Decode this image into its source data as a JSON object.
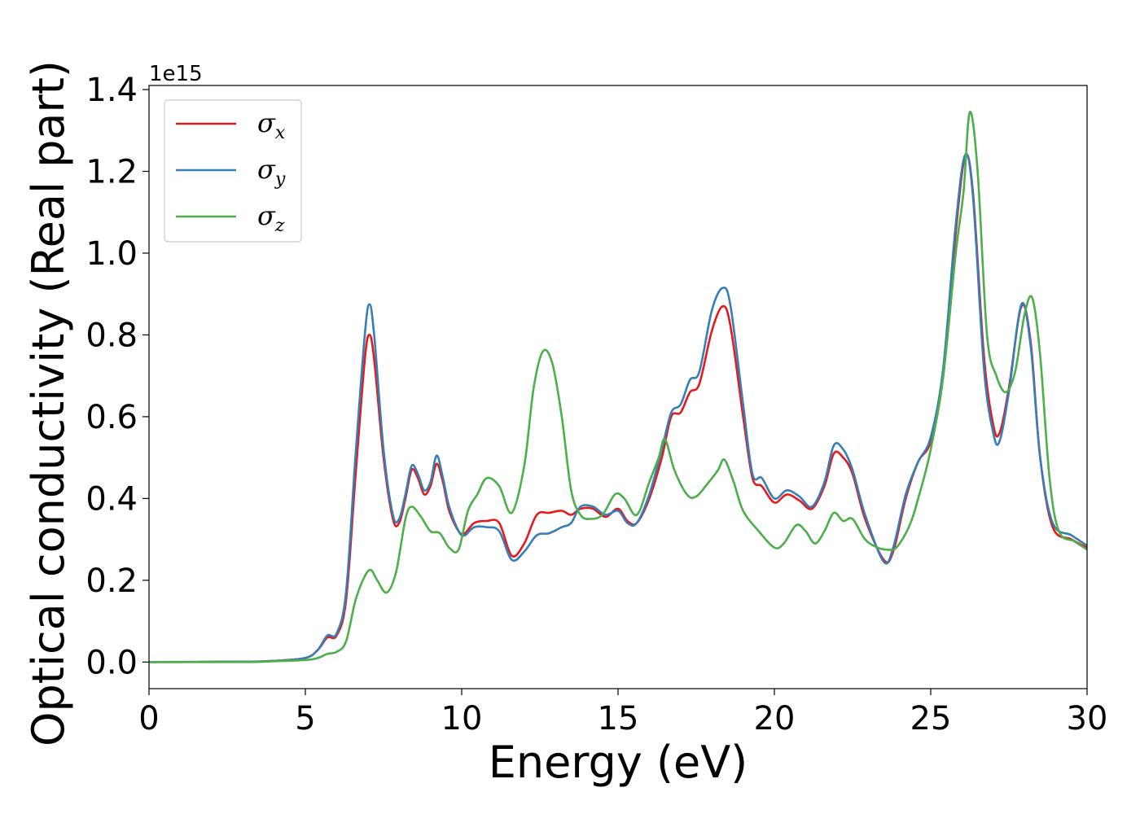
{
  "chart_data": {
    "type": "line",
    "title": "",
    "xlabel": "Energy (eV)",
    "ylabel": "Optical conductivity (Real part)",
    "y_offset_label": "1e15",
    "xlim": [
      0,
      30
    ],
    "ylim": [
      -0.065,
      1.41
    ],
    "x_ticks": [
      0,
      5,
      10,
      15,
      20,
      25,
      30
    ],
    "y_ticks": [
      0.0,
      0.2,
      0.4,
      0.6,
      0.8,
      1.0,
      1.2,
      1.4
    ],
    "x_tick_labels": [
      "0",
      "5",
      "10",
      "15",
      "20",
      "25",
      "30"
    ],
    "y_tick_labels": [
      "0.0",
      "0.2",
      "0.4",
      "0.6",
      "0.8",
      "1.0",
      "1.2",
      "1.4"
    ],
    "grid": false,
    "legend": "top-left",
    "series": [
      {
        "name": "σx",
        "symbol": "σ",
        "subscript": "x",
        "color": "#e41a1c",
        "points": [
          [
            0,
            0
          ],
          [
            3,
            0.001
          ],
          [
            4,
            0.003
          ],
          [
            5,
            0.01
          ],
          [
            5.4,
            0.03
          ],
          [
            5.7,
            0.06
          ],
          [
            6.0,
            0.065
          ],
          [
            6.3,
            0.15
          ],
          [
            6.6,
            0.45
          ],
          [
            6.9,
            0.74
          ],
          [
            7.05,
            0.8
          ],
          [
            7.2,
            0.74
          ],
          [
            7.5,
            0.5
          ],
          [
            7.8,
            0.35
          ],
          [
            8.0,
            0.34
          ],
          [
            8.2,
            0.4
          ],
          [
            8.4,
            0.47
          ],
          [
            8.6,
            0.45
          ],
          [
            8.8,
            0.41
          ],
          [
            9.0,
            0.43
          ],
          [
            9.2,
            0.485
          ],
          [
            9.4,
            0.44
          ],
          [
            9.6,
            0.37
          ],
          [
            9.9,
            0.32
          ],
          [
            10.1,
            0.315
          ],
          [
            10.4,
            0.34
          ],
          [
            10.8,
            0.345
          ],
          [
            11.2,
            0.34
          ],
          [
            11.6,
            0.26
          ],
          [
            12.0,
            0.29
          ],
          [
            12.4,
            0.36
          ],
          [
            12.8,
            0.365
          ],
          [
            13.2,
            0.37
          ],
          [
            13.5,
            0.36
          ],
          [
            13.8,
            0.375
          ],
          [
            14.2,
            0.375
          ],
          [
            14.6,
            0.355
          ],
          [
            15.0,
            0.375
          ],
          [
            15.3,
            0.345
          ],
          [
            15.6,
            0.34
          ],
          [
            16.0,
            0.4
          ],
          [
            16.4,
            0.5
          ],
          [
            16.7,
            0.6
          ],
          [
            17.0,
            0.61
          ],
          [
            17.3,
            0.66
          ],
          [
            17.6,
            0.68
          ],
          [
            18.0,
            0.81
          ],
          [
            18.35,
            0.87
          ],
          [
            18.6,
            0.82
          ],
          [
            19.0,
            0.6
          ],
          [
            19.3,
            0.45
          ],
          [
            19.6,
            0.43
          ],
          [
            20.0,
            0.39
          ],
          [
            20.4,
            0.41
          ],
          [
            20.8,
            0.395
          ],
          [
            21.2,
            0.375
          ],
          [
            21.6,
            0.43
          ],
          [
            21.9,
            0.51
          ],
          [
            22.2,
            0.5
          ],
          [
            22.5,
            0.46
          ],
          [
            22.9,
            0.35
          ],
          [
            23.5,
            0.25
          ],
          [
            23.8,
            0.27
          ],
          [
            24.2,
            0.4
          ],
          [
            24.6,
            0.49
          ],
          [
            25.0,
            0.54
          ],
          [
            25.4,
            0.7
          ],
          [
            25.8,
            1.05
          ],
          [
            26.1,
            1.235
          ],
          [
            26.35,
            1.15
          ],
          [
            26.7,
            0.75
          ],
          [
            27.0,
            0.58
          ],
          [
            27.2,
            0.56
          ],
          [
            27.5,
            0.67
          ],
          [
            27.9,
            0.87
          ],
          [
            28.2,
            0.78
          ],
          [
            28.5,
            0.5
          ],
          [
            28.9,
            0.33
          ],
          [
            29.5,
            0.3
          ],
          [
            30,
            0.28
          ]
        ]
      },
      {
        "name": "σy",
        "symbol": "σ",
        "subscript": "y",
        "color": "#377eb8",
        "points": [
          [
            0,
            0
          ],
          [
            3,
            0.001
          ],
          [
            4,
            0.003
          ],
          [
            5,
            0.01
          ],
          [
            5.4,
            0.03
          ],
          [
            5.7,
            0.065
          ],
          [
            6.0,
            0.07
          ],
          [
            6.3,
            0.17
          ],
          [
            6.6,
            0.5
          ],
          [
            6.9,
            0.8
          ],
          [
            7.05,
            0.875
          ],
          [
            7.2,
            0.8
          ],
          [
            7.5,
            0.52
          ],
          [
            7.8,
            0.36
          ],
          [
            8.0,
            0.35
          ],
          [
            8.2,
            0.41
          ],
          [
            8.4,
            0.48
          ],
          [
            8.6,
            0.46
          ],
          [
            8.8,
            0.42
          ],
          [
            9.0,
            0.44
          ],
          [
            9.2,
            0.505
          ],
          [
            9.4,
            0.45
          ],
          [
            9.6,
            0.38
          ],
          [
            9.9,
            0.32
          ],
          [
            10.1,
            0.31
          ],
          [
            10.4,
            0.33
          ],
          [
            10.8,
            0.33
          ],
          [
            11.2,
            0.32
          ],
          [
            11.6,
            0.25
          ],
          [
            12.0,
            0.27
          ],
          [
            12.4,
            0.31
          ],
          [
            12.8,
            0.315
          ],
          [
            13.2,
            0.33
          ],
          [
            13.5,
            0.34
          ],
          [
            13.8,
            0.38
          ],
          [
            14.2,
            0.38
          ],
          [
            14.6,
            0.36
          ],
          [
            15.0,
            0.37
          ],
          [
            15.3,
            0.34
          ],
          [
            15.6,
            0.34
          ],
          [
            16.0,
            0.41
          ],
          [
            16.4,
            0.52
          ],
          [
            16.7,
            0.61
          ],
          [
            17.0,
            0.63
          ],
          [
            17.3,
            0.69
          ],
          [
            17.6,
            0.71
          ],
          [
            18.0,
            0.86
          ],
          [
            18.35,
            0.915
          ],
          [
            18.6,
            0.87
          ],
          [
            19.0,
            0.63
          ],
          [
            19.3,
            0.46
          ],
          [
            19.6,
            0.45
          ],
          [
            20.0,
            0.4
          ],
          [
            20.4,
            0.42
          ],
          [
            20.8,
            0.405
          ],
          [
            21.2,
            0.38
          ],
          [
            21.6,
            0.44
          ],
          [
            21.9,
            0.53
          ],
          [
            22.2,
            0.52
          ],
          [
            22.5,
            0.47
          ],
          [
            22.9,
            0.36
          ],
          [
            23.5,
            0.245
          ],
          [
            23.8,
            0.28
          ],
          [
            24.2,
            0.41
          ],
          [
            24.6,
            0.49
          ],
          [
            25.0,
            0.55
          ],
          [
            25.4,
            0.72
          ],
          [
            25.8,
            1.07
          ],
          [
            26.1,
            1.24
          ],
          [
            26.35,
            1.14
          ],
          [
            26.7,
            0.72
          ],
          [
            27.0,
            0.56
          ],
          [
            27.2,
            0.54
          ],
          [
            27.5,
            0.66
          ],
          [
            27.9,
            0.875
          ],
          [
            28.2,
            0.77
          ],
          [
            28.5,
            0.5
          ],
          [
            28.9,
            0.34
          ],
          [
            29.5,
            0.31
          ],
          [
            30,
            0.285
          ]
        ]
      },
      {
        "name": "σz",
        "symbol": "σ",
        "subscript": "z",
        "color": "#4daf4a",
        "points": [
          [
            0,
            0
          ],
          [
            3,
            0.0
          ],
          [
            4,
            0.002
          ],
          [
            5,
            0.005
          ],
          [
            5.4,
            0.01
          ],
          [
            5.7,
            0.02
          ],
          [
            6.0,
            0.025
          ],
          [
            6.3,
            0.05
          ],
          [
            6.6,
            0.15
          ],
          [
            6.9,
            0.21
          ],
          [
            7.1,
            0.225
          ],
          [
            7.3,
            0.2
          ],
          [
            7.6,
            0.17
          ],
          [
            7.9,
            0.22
          ],
          [
            8.2,
            0.35
          ],
          [
            8.4,
            0.38
          ],
          [
            8.7,
            0.355
          ],
          [
            9.0,
            0.32
          ],
          [
            9.3,
            0.315
          ],
          [
            9.6,
            0.28
          ],
          [
            9.9,
            0.275
          ],
          [
            10.2,
            0.37
          ],
          [
            10.5,
            0.41
          ],
          [
            10.8,
            0.45
          ],
          [
            11.2,
            0.43
          ],
          [
            11.6,
            0.365
          ],
          [
            12.0,
            0.48
          ],
          [
            12.3,
            0.67
          ],
          [
            12.6,
            0.76
          ],
          [
            12.9,
            0.73
          ],
          [
            13.2,
            0.6
          ],
          [
            13.5,
            0.42
          ],
          [
            13.8,
            0.36
          ],
          [
            14.1,
            0.35
          ],
          [
            14.5,
            0.36
          ],
          [
            14.9,
            0.41
          ],
          [
            15.2,
            0.4
          ],
          [
            15.6,
            0.36
          ],
          [
            16.0,
            0.44
          ],
          [
            16.3,
            0.5
          ],
          [
            16.5,
            0.545
          ],
          [
            16.8,
            0.47
          ],
          [
            17.2,
            0.41
          ],
          [
            17.5,
            0.405
          ],
          [
            17.9,
            0.44
          ],
          [
            18.2,
            0.47
          ],
          [
            18.4,
            0.495
          ],
          [
            18.7,
            0.44
          ],
          [
            19.0,
            0.37
          ],
          [
            19.5,
            0.32
          ],
          [
            20.0,
            0.28
          ],
          [
            20.3,
            0.29
          ],
          [
            20.7,
            0.335
          ],
          [
            21.0,
            0.32
          ],
          [
            21.3,
            0.29
          ],
          [
            21.6,
            0.32
          ],
          [
            21.9,
            0.365
          ],
          [
            22.2,
            0.345
          ],
          [
            22.5,
            0.35
          ],
          [
            22.9,
            0.3
          ],
          [
            23.3,
            0.28
          ],
          [
            23.6,
            0.275
          ],
          [
            23.9,
            0.28
          ],
          [
            24.3,
            0.33
          ],
          [
            24.6,
            0.4
          ],
          [
            25.0,
            0.52
          ],
          [
            25.4,
            0.7
          ],
          [
            25.8,
            1.0
          ],
          [
            26.05,
            1.15
          ],
          [
            26.25,
            1.345
          ],
          [
            26.5,
            1.2
          ],
          [
            26.8,
            0.8
          ],
          [
            27.1,
            0.7
          ],
          [
            27.4,
            0.66
          ],
          [
            27.7,
            0.71
          ],
          [
            28.0,
            0.85
          ],
          [
            28.25,
            0.89
          ],
          [
            28.5,
            0.75
          ],
          [
            28.8,
            0.45
          ],
          [
            29.1,
            0.32
          ],
          [
            29.6,
            0.295
          ],
          [
            30,
            0.275
          ]
        ]
      }
    ]
  }
}
